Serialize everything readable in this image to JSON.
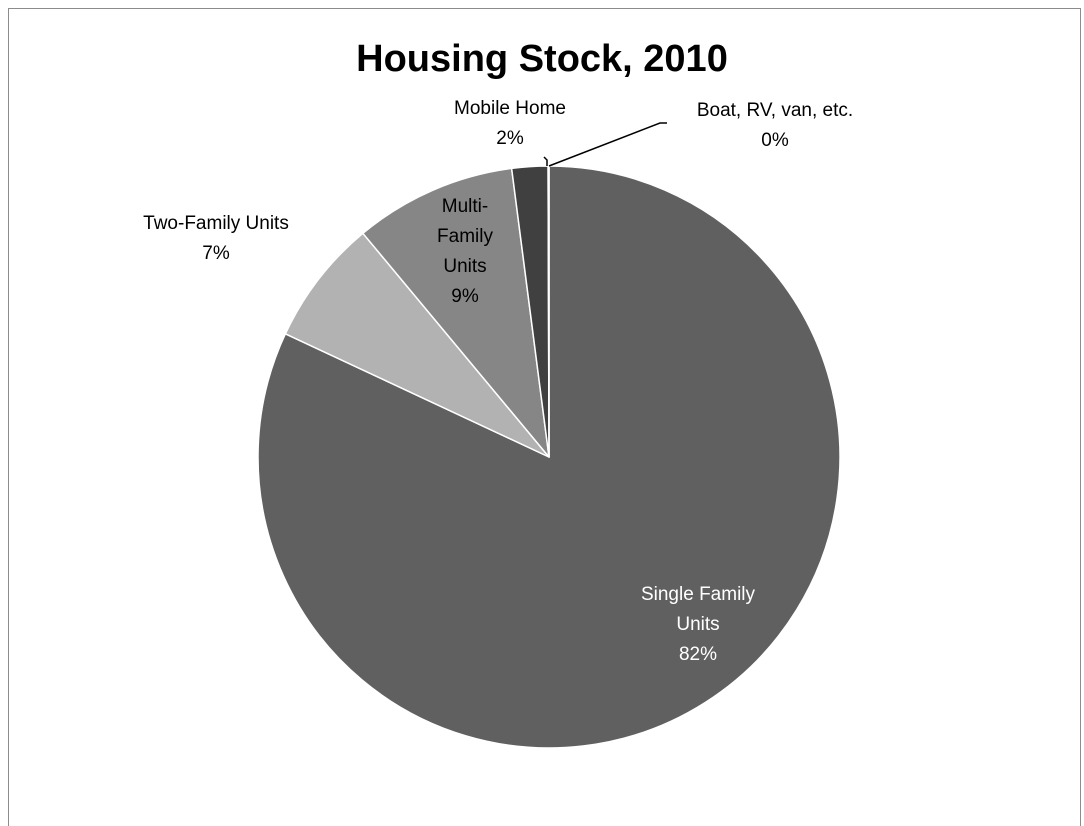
{
  "chart_data": {
    "type": "pie",
    "title": "Housing Stock, 2010",
    "slices": [
      {
        "label_lines": [
          "Single Family",
          "Units"
        ],
        "percent_label": "82%",
        "value": 82,
        "color": "#606060",
        "label_color": "#ffffff"
      },
      {
        "label_lines": [
          "Two-Family Units"
        ],
        "percent_label": "7%",
        "value": 7,
        "color": "#b2b2b2",
        "label_color": "#000000"
      },
      {
        "label_lines": [
          "Multi-",
          "Family",
          "Units"
        ],
        "percent_label": "9%",
        "value": 9,
        "color": "#868686",
        "label_color": "#000000"
      },
      {
        "label_lines": [
          "Mobile Home"
        ],
        "percent_label": "2%",
        "value": 2,
        "color": "#404040",
        "label_color": "#000000"
      },
      {
        "label_lines": [
          "Boat, RV, van, etc."
        ],
        "percent_label": "0%",
        "value": 0.05,
        "color": "#d9d9d9",
        "label_color": "#000000"
      }
    ],
    "legend": "none"
  }
}
